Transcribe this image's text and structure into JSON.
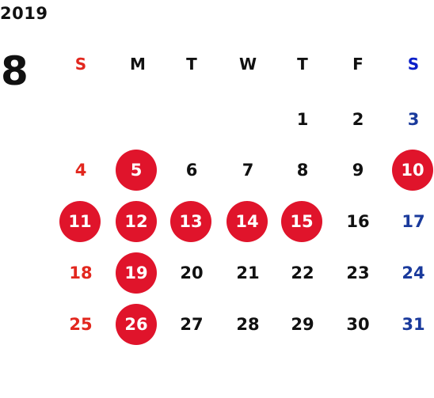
{
  "year": "2019",
  "month": "8",
  "weekdays": [
    "S",
    "M",
    "T",
    "W",
    "T",
    "F",
    "S"
  ],
  "weeks": [
    [
      "",
      "",
      "",
      "",
      "1",
      "2",
      "3"
    ],
    [
      "4",
      "5",
      "6",
      "7",
      "8",
      "9",
      "10"
    ],
    [
      "11",
      "12",
      "13",
      "14",
      "15",
      "16",
      "17"
    ],
    [
      "18",
      "19",
      "20",
      "21",
      "22",
      "23",
      "24"
    ],
    [
      "25",
      "26",
      "27",
      "28",
      "29",
      "30",
      "31"
    ]
  ],
  "highlighted_days": [
    "5",
    "10",
    "11",
    "12",
    "13",
    "14",
    "15",
    "19",
    "26"
  ],
  "colors": {
    "sunday": "#e2271e",
    "saturday_header": "#0a1fc9",
    "saturday": "#1a3a9c",
    "weekday": "#111111",
    "highlight_bg": "#e0142b",
    "highlight_text": "#ffffff"
  }
}
